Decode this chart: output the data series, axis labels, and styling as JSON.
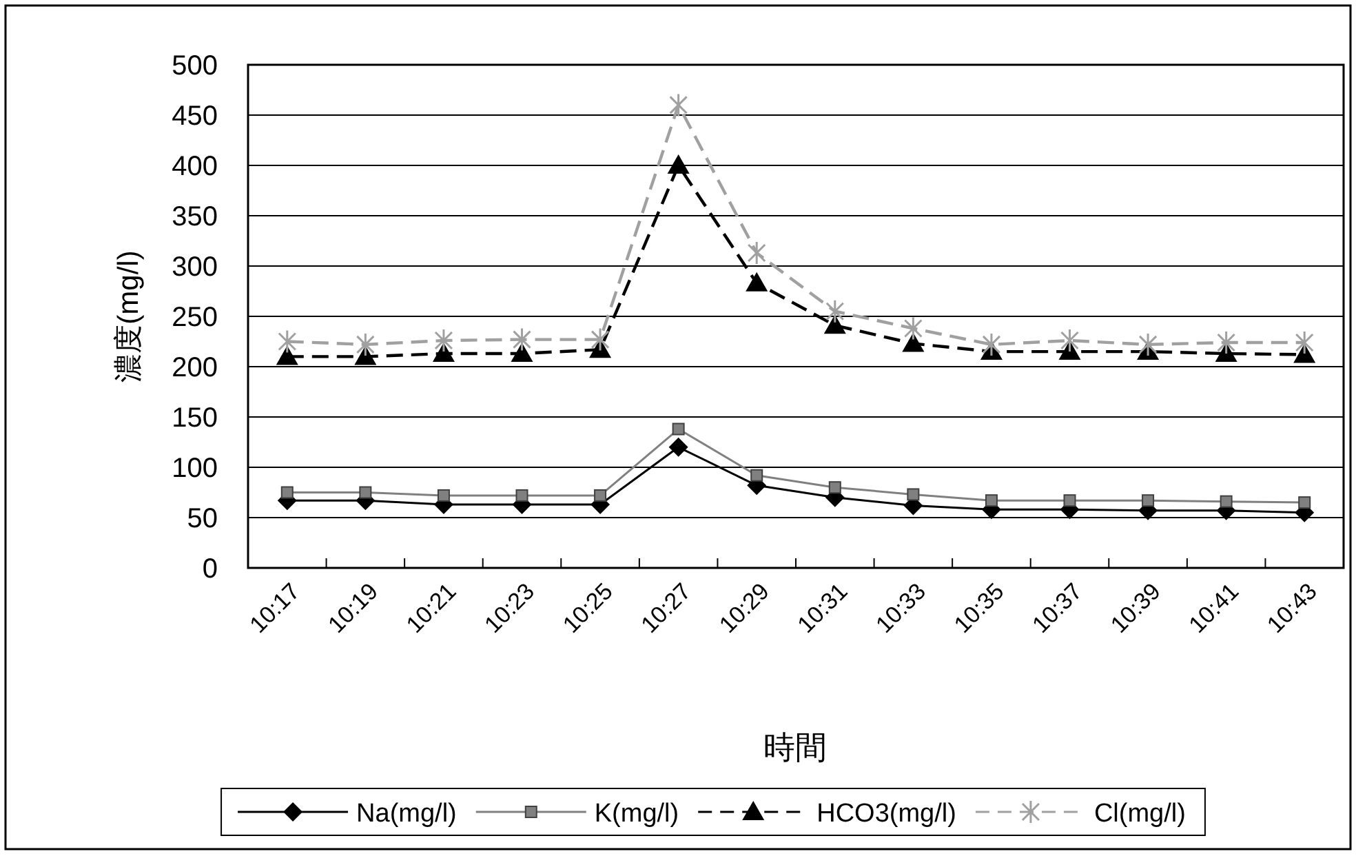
{
  "chart_data": {
    "type": "line",
    "ylabel": "濃度(mg/l)",
    "xlabel": "時間",
    "categories": [
      "10:17",
      "10:19",
      "10:21",
      "10:23",
      "10:25",
      "10:27",
      "10:29",
      "10:31",
      "10:33",
      "10:35",
      "10:37",
      "10:39",
      "10:41",
      "10:43"
    ],
    "series": [
      {
        "name": "Na(mg/l)",
        "color": "#000000",
        "marker": "diamond",
        "line_style": "solid",
        "values": [
          67,
          67,
          63,
          63,
          63,
          120,
          82,
          70,
          62,
          58,
          58,
          57,
          57,
          55
        ]
      },
      {
        "name": "K(mg/l)",
        "color": "#808080",
        "marker": "square",
        "line_style": "solid",
        "values": [
          75,
          75,
          72,
          72,
          72,
          138,
          92,
          80,
          73,
          67,
          67,
          67,
          66,
          65
        ]
      },
      {
        "name": "HCO3(mg/l)",
        "color": "#000000",
        "marker": "triangle",
        "line_style": "dashed",
        "values": [
          210,
          210,
          213,
          213,
          217,
          400,
          283,
          241,
          223,
          215,
          215,
          215,
          213,
          212
        ]
      },
      {
        "name": "Cl(mg/l)",
        "color": "#a0a0a0",
        "marker": "cross",
        "line_style": "dashed",
        "values": [
          225,
          222,
          226,
          227,
          227,
          460,
          313,
          255,
          238,
          222,
          226,
          222,
          224,
          224
        ]
      }
    ],
    "ylim": [
      0,
      500
    ],
    "yticks": [
      0,
      50,
      100,
      150,
      200,
      250,
      300,
      350,
      400,
      450,
      500
    ],
    "grid": "y",
    "legend": "bottom"
  }
}
